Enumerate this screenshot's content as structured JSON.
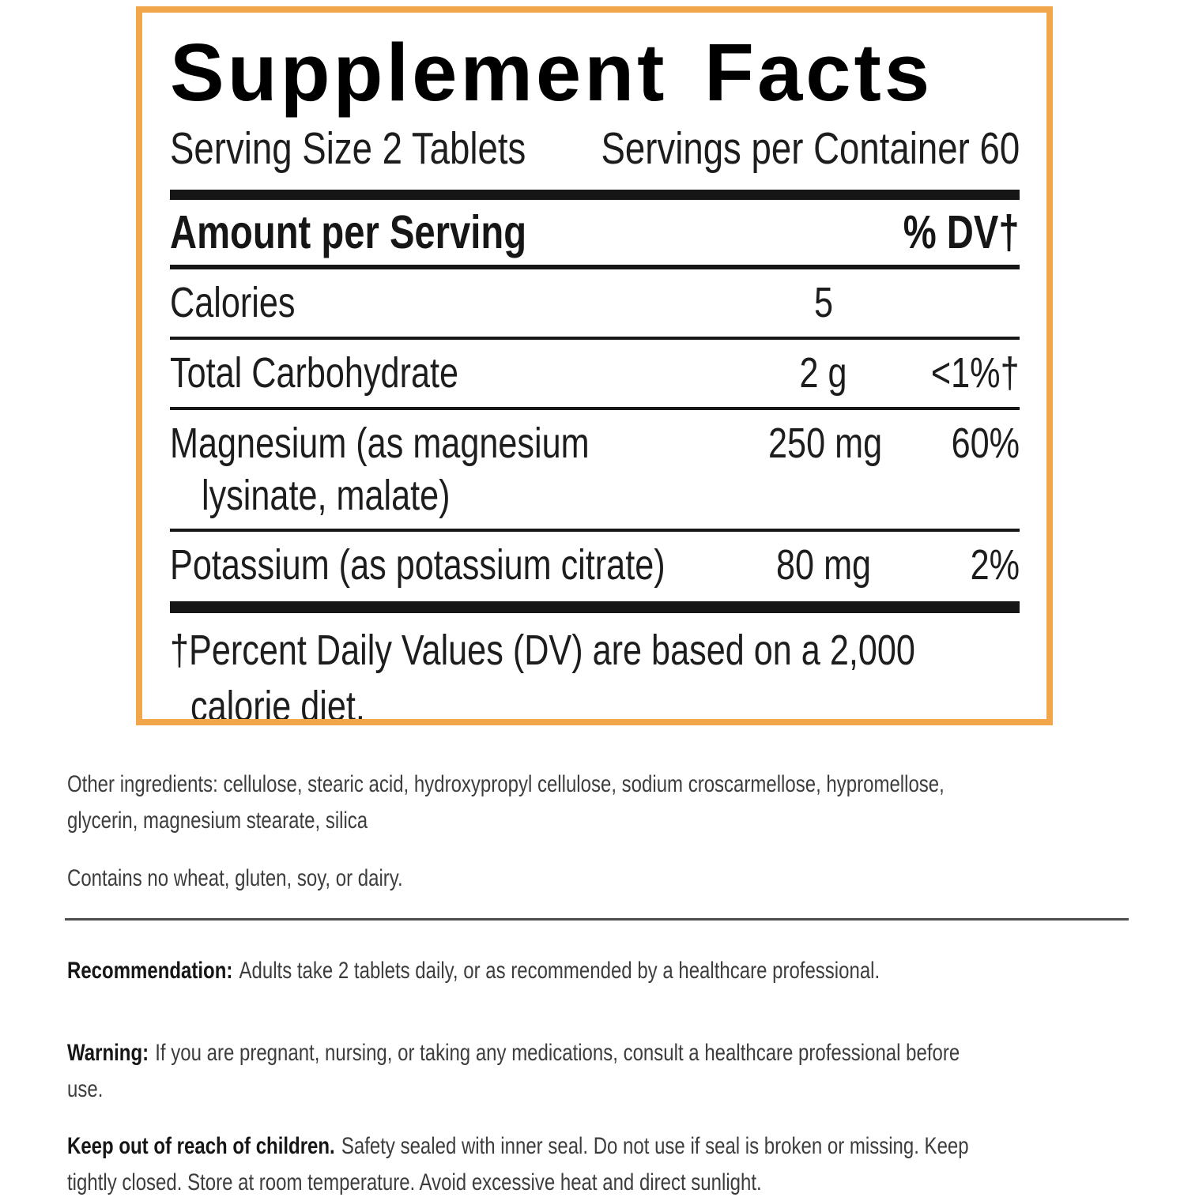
{
  "panel": {
    "border_color": "#F1A64B",
    "title": "Supplement Facts",
    "serving_size": "Serving Size 2 Tablets",
    "servings_per_container": "Servings per Container 60",
    "header": {
      "amount_label": "Amount per Serving",
      "dv_label": "% DV†"
    },
    "rows": [
      {
        "name": "Calories",
        "amount": "5",
        "dv": ""
      },
      {
        "name": "Total Carbohydrate",
        "amount": "2 g",
        "dv": "<1%†"
      },
      {
        "name_lines": [
          "Magnesium (as magnesium",
          "lysinate, malate)"
        ],
        "amount": "250 mg",
        "dv": "60%"
      },
      {
        "name": "Potassium (as potassium citrate)",
        "amount": "80 mg",
        "dv": "2%"
      }
    ],
    "footnote_lines": [
      "†Percent Daily Values (DV) are based on a 2,000",
      "calorie diet."
    ]
  },
  "info": {
    "other_ingredients": {
      "lines": [
        "Other ingredients: cellulose, stearic acid, hydroxypropyl cellulose, sodium croscarmellose, hypromellose,",
        "glycerin, magnesium stearate, silica"
      ]
    },
    "contains": "Contains no wheat, gluten, soy, or dairy.",
    "recommendation": {
      "lead": "Recommendation:",
      "lines": [
        "Adults take 2 tablets daily, or as recommended by a healthcare professional."
      ]
    },
    "warning": {
      "lead": "Warning:",
      "lines": [
        "If you are pregnant, nursing, or taking any medications, consult a healthcare professional before",
        "use."
      ]
    },
    "storage": {
      "lead": "Keep out of reach of children.",
      "lines": [
        "Safety sealed with inner seal. Do not use if seal is broken or missing. Keep",
        "tightly closed. Store at room temperature. Avoid excessive heat and direct sunlight."
      ]
    }
  }
}
